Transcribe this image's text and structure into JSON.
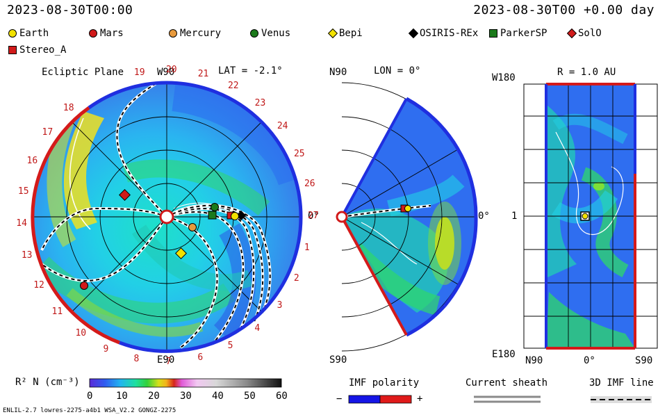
{
  "header": {
    "left_time": "2023-08-30T00:00",
    "right_time": "2023-08-30T00 +0.00 day"
  },
  "legend": [
    {
      "name": "Earth",
      "shape": "circle",
      "color": "#f2e200"
    },
    {
      "name": "Mars",
      "shape": "circle",
      "color": "#d11a1a"
    },
    {
      "name": "Mercury",
      "shape": "circle",
      "color": "#e89a3c"
    },
    {
      "name": "Venus",
      "shape": "circle",
      "color": "#1b7a1b"
    },
    {
      "name": "Bepi",
      "shape": "diamond",
      "color": "#f2e200"
    },
    {
      "name": "OSIRIS-REx",
      "shape": "diamond",
      "color": "#000000"
    },
    {
      "name": "ParkerSP",
      "shape": "square",
      "color": "#1b7a1b"
    },
    {
      "name": "SolO",
      "shape": "diamond",
      "color": "#d11a1a"
    },
    {
      "name": "Stereo_A",
      "shape": "square",
      "color": "#d11a1a"
    }
  ],
  "panel1": {
    "title": "Ecliptic Plane",
    "top_label": "W90",
    "bottom_label": "E90",
    "right_label": "0°",
    "lat_label": "LAT = -2.1°",
    "rotations": [
      "19",
      "20",
      "21",
      "22",
      "23",
      "24",
      "25",
      "26",
      "27",
      "1",
      "2",
      "3",
      "4",
      "5",
      "6",
      "7",
      "8",
      "9",
      "10",
      "11",
      "12",
      "13",
      "14",
      "15",
      "16",
      "17",
      "18"
    ]
  },
  "panel2": {
    "top_label": "N90",
    "bottom_label": "S90",
    "lon_label": "LON = 0°",
    "right_label": "0°"
  },
  "panel3": {
    "title": "R = 1.0 AU",
    "top_left": "W180",
    "bottom_left": "E180",
    "mid_left": "1",
    "x_left": "N90",
    "x_mid": "0°",
    "x_right": "S90"
  },
  "colorbar": {
    "label": "R² N (cm⁻³)",
    "ticks": [
      "0",
      "10",
      "20",
      "30",
      "40",
      "50",
      "60"
    ]
  },
  "imf_polarity": {
    "label": "IMF polarity",
    "minus": "−",
    "plus": "+",
    "colors": [
      "#1515e6",
      "#e01a1a"
    ]
  },
  "current_sheath": {
    "label": "Current sheath"
  },
  "imf_line": {
    "label": "3D IMF line"
  },
  "footer": "ENLIL-2.7 lowres-2275-a4b1 WSA_V2.2 GONGZ-2275",
  "palette": {
    "label_red": "#c01818",
    "outer_blue": "#1f2fe0",
    "outer_red": "#d41a1a"
  }
}
